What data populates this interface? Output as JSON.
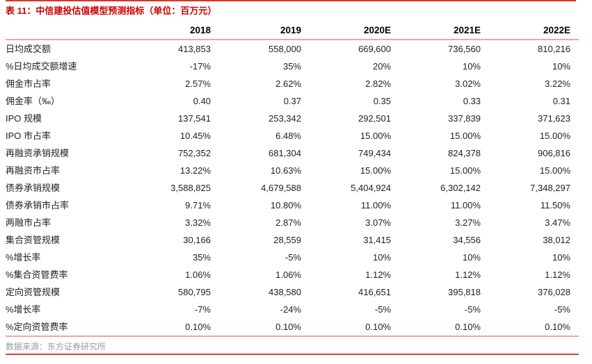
{
  "page": {
    "title": "表 11：中信建投估值模型预测指标（单位：百万元）",
    "source_note": "数据来源：东方证券研究所"
  },
  "colors": {
    "title_red": "#cc0000",
    "top_rule_red": "#d8352c",
    "bottom_rule_red": "#e04038",
    "separator_salmon": "#f2a6a0",
    "body_text": "#1f1f1f",
    "source_gray": "#9a9a9a"
  },
  "table": {
    "columns": [
      "",
      "2018",
      "2019",
      "2020E",
      "2021E",
      "2022E"
    ],
    "rows": [
      {
        "label": "日均成交额",
        "values": [
          "413,853",
          "558,000",
          "669,600",
          "736,560",
          "810,216"
        ]
      },
      {
        "label": "%日均成交额增速",
        "values": [
          "-17%",
          "35%",
          "20%",
          "10%",
          "10%"
        ]
      },
      {
        "label": "佣金市占率",
        "values": [
          "2.57%",
          "2.62%",
          "2.82%",
          "3.02%",
          "3.22%"
        ]
      },
      {
        "label": "佣金率（‰）",
        "values": [
          "0.40",
          "0.37",
          "0.35",
          "0.33",
          "0.31"
        ]
      },
      {
        "label": "IPO 规模",
        "values": [
          "137,541",
          "253,342",
          "292,501",
          "337,839",
          "371,623"
        ]
      },
      {
        "label": "IPO 市占率",
        "values": [
          "10.45%",
          "6.48%",
          "15.00%",
          "15.00%",
          "15.00%"
        ]
      },
      {
        "label": "再融资承销规模",
        "values": [
          "752,352",
          "681,304",
          "749,434",
          "824,378",
          "906,816"
        ]
      },
      {
        "label": "再融资市占率",
        "values": [
          "13.22%",
          "10.63%",
          "15.00%",
          "15.00%",
          "15.00%"
        ]
      },
      {
        "label": "债券承销规模",
        "values": [
          "3,588,825",
          "4,679,588",
          "5,404,924",
          "6,302,142",
          "7,348,297"
        ]
      },
      {
        "label": "债券承销市占率",
        "values": [
          "9.71%",
          "10.80%",
          "11.00%",
          "11.00%",
          "11.50%"
        ]
      },
      {
        "label": "两融市占率",
        "values": [
          "3.32%",
          "2.87%",
          "3.07%",
          "3.27%",
          "3.47%"
        ]
      },
      {
        "label": "集合资管规模",
        "values": [
          "30,166",
          "28,559",
          "31,415",
          "34,556",
          "38,012"
        ]
      },
      {
        "label": "%增长率",
        "values": [
          "35%",
          "-5%",
          "10%",
          "10%",
          "10%"
        ]
      },
      {
        "label": "%集合资管费率",
        "values": [
          "1.06%",
          "1.06%",
          "1.12%",
          "1.12%",
          "1.12%"
        ]
      },
      {
        "label": "定向资管规模",
        "values": [
          "580,795",
          "438,580",
          "416,651",
          "395,818",
          "376,028"
        ]
      },
      {
        "label": "%增长率",
        "values": [
          "-7%",
          "-24%",
          "-5%",
          "-5%",
          "-5%"
        ]
      },
      {
        "label": "%定向资管费率",
        "values": [
          "0.10%",
          "0.10%",
          "0.10%",
          "0.10%",
          "0.10%"
        ]
      }
    ]
  }
}
